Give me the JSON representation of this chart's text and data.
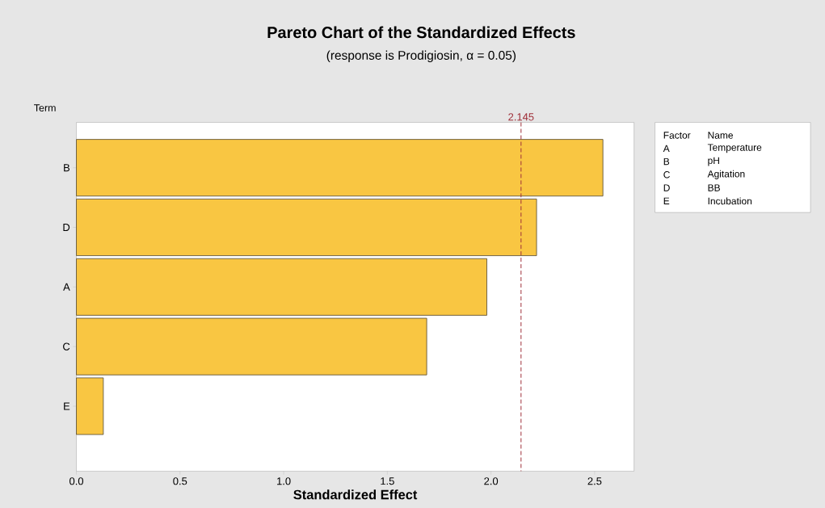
{
  "chart_data": {
    "type": "bar",
    "orientation": "horizontal",
    "title": "Pareto Chart of the Standardized Effects",
    "subtitle": "(response is Prodigiosin, α = 0.05)",
    "xlabel": "Standardized Effect",
    "ylabel": "Term",
    "categories": [
      "B",
      "D",
      "A",
      "C",
      "E"
    ],
    "values": [
      2.54,
      2.22,
      1.98,
      1.69,
      0.13
    ],
    "color": "#f9c642",
    "xlim": [
      0,
      2.69
    ],
    "xticks": [
      {
        "value": 0,
        "label": "0.0"
      },
      0.5,
      {
        "value": 1,
        "label": "1.0"
      },
      1.5,
      {
        "value": 2,
        "label": "2.0"
      },
      2.5
    ],
    "ref_lines": [
      {
        "axis": "x",
        "value": 2.145,
        "label": "2.145",
        "color": "#a0303a",
        "line_style": "dashed"
      }
    ],
    "annotations": [
      "Factor",
      "Name",
      "A",
      "Temperature",
      "B",
      "pH",
      "C",
      "Agitation",
      "D",
      "BB",
      "E",
      "Incubation"
    ]
  }
}
